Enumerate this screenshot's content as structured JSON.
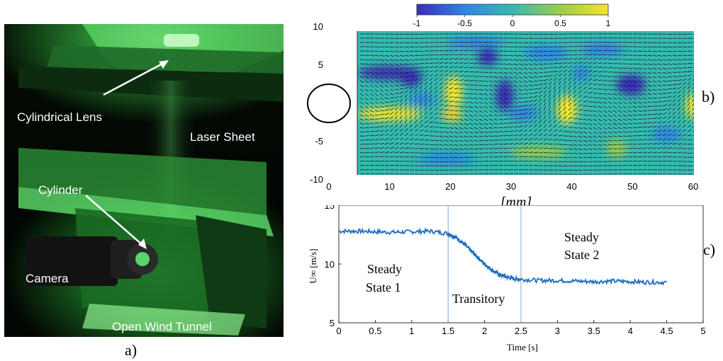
{
  "photo": {
    "labels": {
      "lens": "Cylindrical Lens",
      "laser": "Laser Sheet",
      "cylinder": "Cylinder",
      "camera": "Camera",
      "tunnel": "Open Wind Tunnel"
    }
  },
  "panel_labels": {
    "a": "a)",
    "b": "b)",
    "c": "c)"
  },
  "chart_data": [
    {
      "type": "heatmap",
      "colorbar": {
        "ticks": [
          "-1",
          "-0.5",
          "0",
          "0.5",
          "1"
        ],
        "range": [
          -1,
          1
        ]
      },
      "x_ticks": [
        "0",
        "10",
        "20",
        "30",
        "40",
        "50",
        "60"
      ],
      "y_ticks": [
        "10",
        "5",
        "0",
        "-5",
        "-10"
      ],
      "xlim": [
        0,
        60
      ],
      "ylim": [
        -12,
        12
      ],
      "xlabel": "[mm]",
      "colors": [
        "#3a2cb8",
        "#2f85e6",
        "#36bab0",
        "#9ccc4a",
        "#f7e62a"
      ]
    },
    {
      "type": "line",
      "xlabel": "Time [s]",
      "ylabel": "U∞ [m/s]",
      "xlim": [
        0,
        5
      ],
      "ylim": [
        5,
        15
      ],
      "x_ticks": [
        "0",
        "0.5",
        "1",
        "1.5",
        "2",
        "2.5",
        "3",
        "3.5",
        "4",
        "4.5",
        "5"
      ],
      "y_ticks": [
        "15",
        "10",
        "5"
      ],
      "vlines": [
        1.5,
        2.5
      ],
      "annotations": {
        "state1_line1": "Steady",
        "state1_line2": "State 1",
        "transitory": "Transitory",
        "state2_line1": "Steady",
        "state2_line2": "State 2"
      },
      "series": [
        {
          "x": [
            0,
            0.25,
            0.5,
            0.75,
            1.0,
            1.25,
            1.5,
            1.6,
            1.7,
            1.8,
            1.9,
            2.0,
            2.1,
            2.2,
            2.3,
            2.4,
            2.5,
            2.75,
            3.0,
            3.25,
            3.5,
            3.75,
            4.0,
            4.25,
            4.5
          ],
          "y": [
            12.8,
            12.8,
            12.75,
            12.7,
            12.75,
            12.8,
            12.6,
            12.3,
            11.8,
            11.2,
            10.6,
            10.0,
            9.5,
            9.1,
            8.9,
            8.75,
            8.7,
            8.6,
            8.6,
            8.55,
            8.5,
            8.55,
            8.5,
            8.45,
            8.45
          ]
        }
      ],
      "line_color": "#1f6fbf"
    }
  ]
}
